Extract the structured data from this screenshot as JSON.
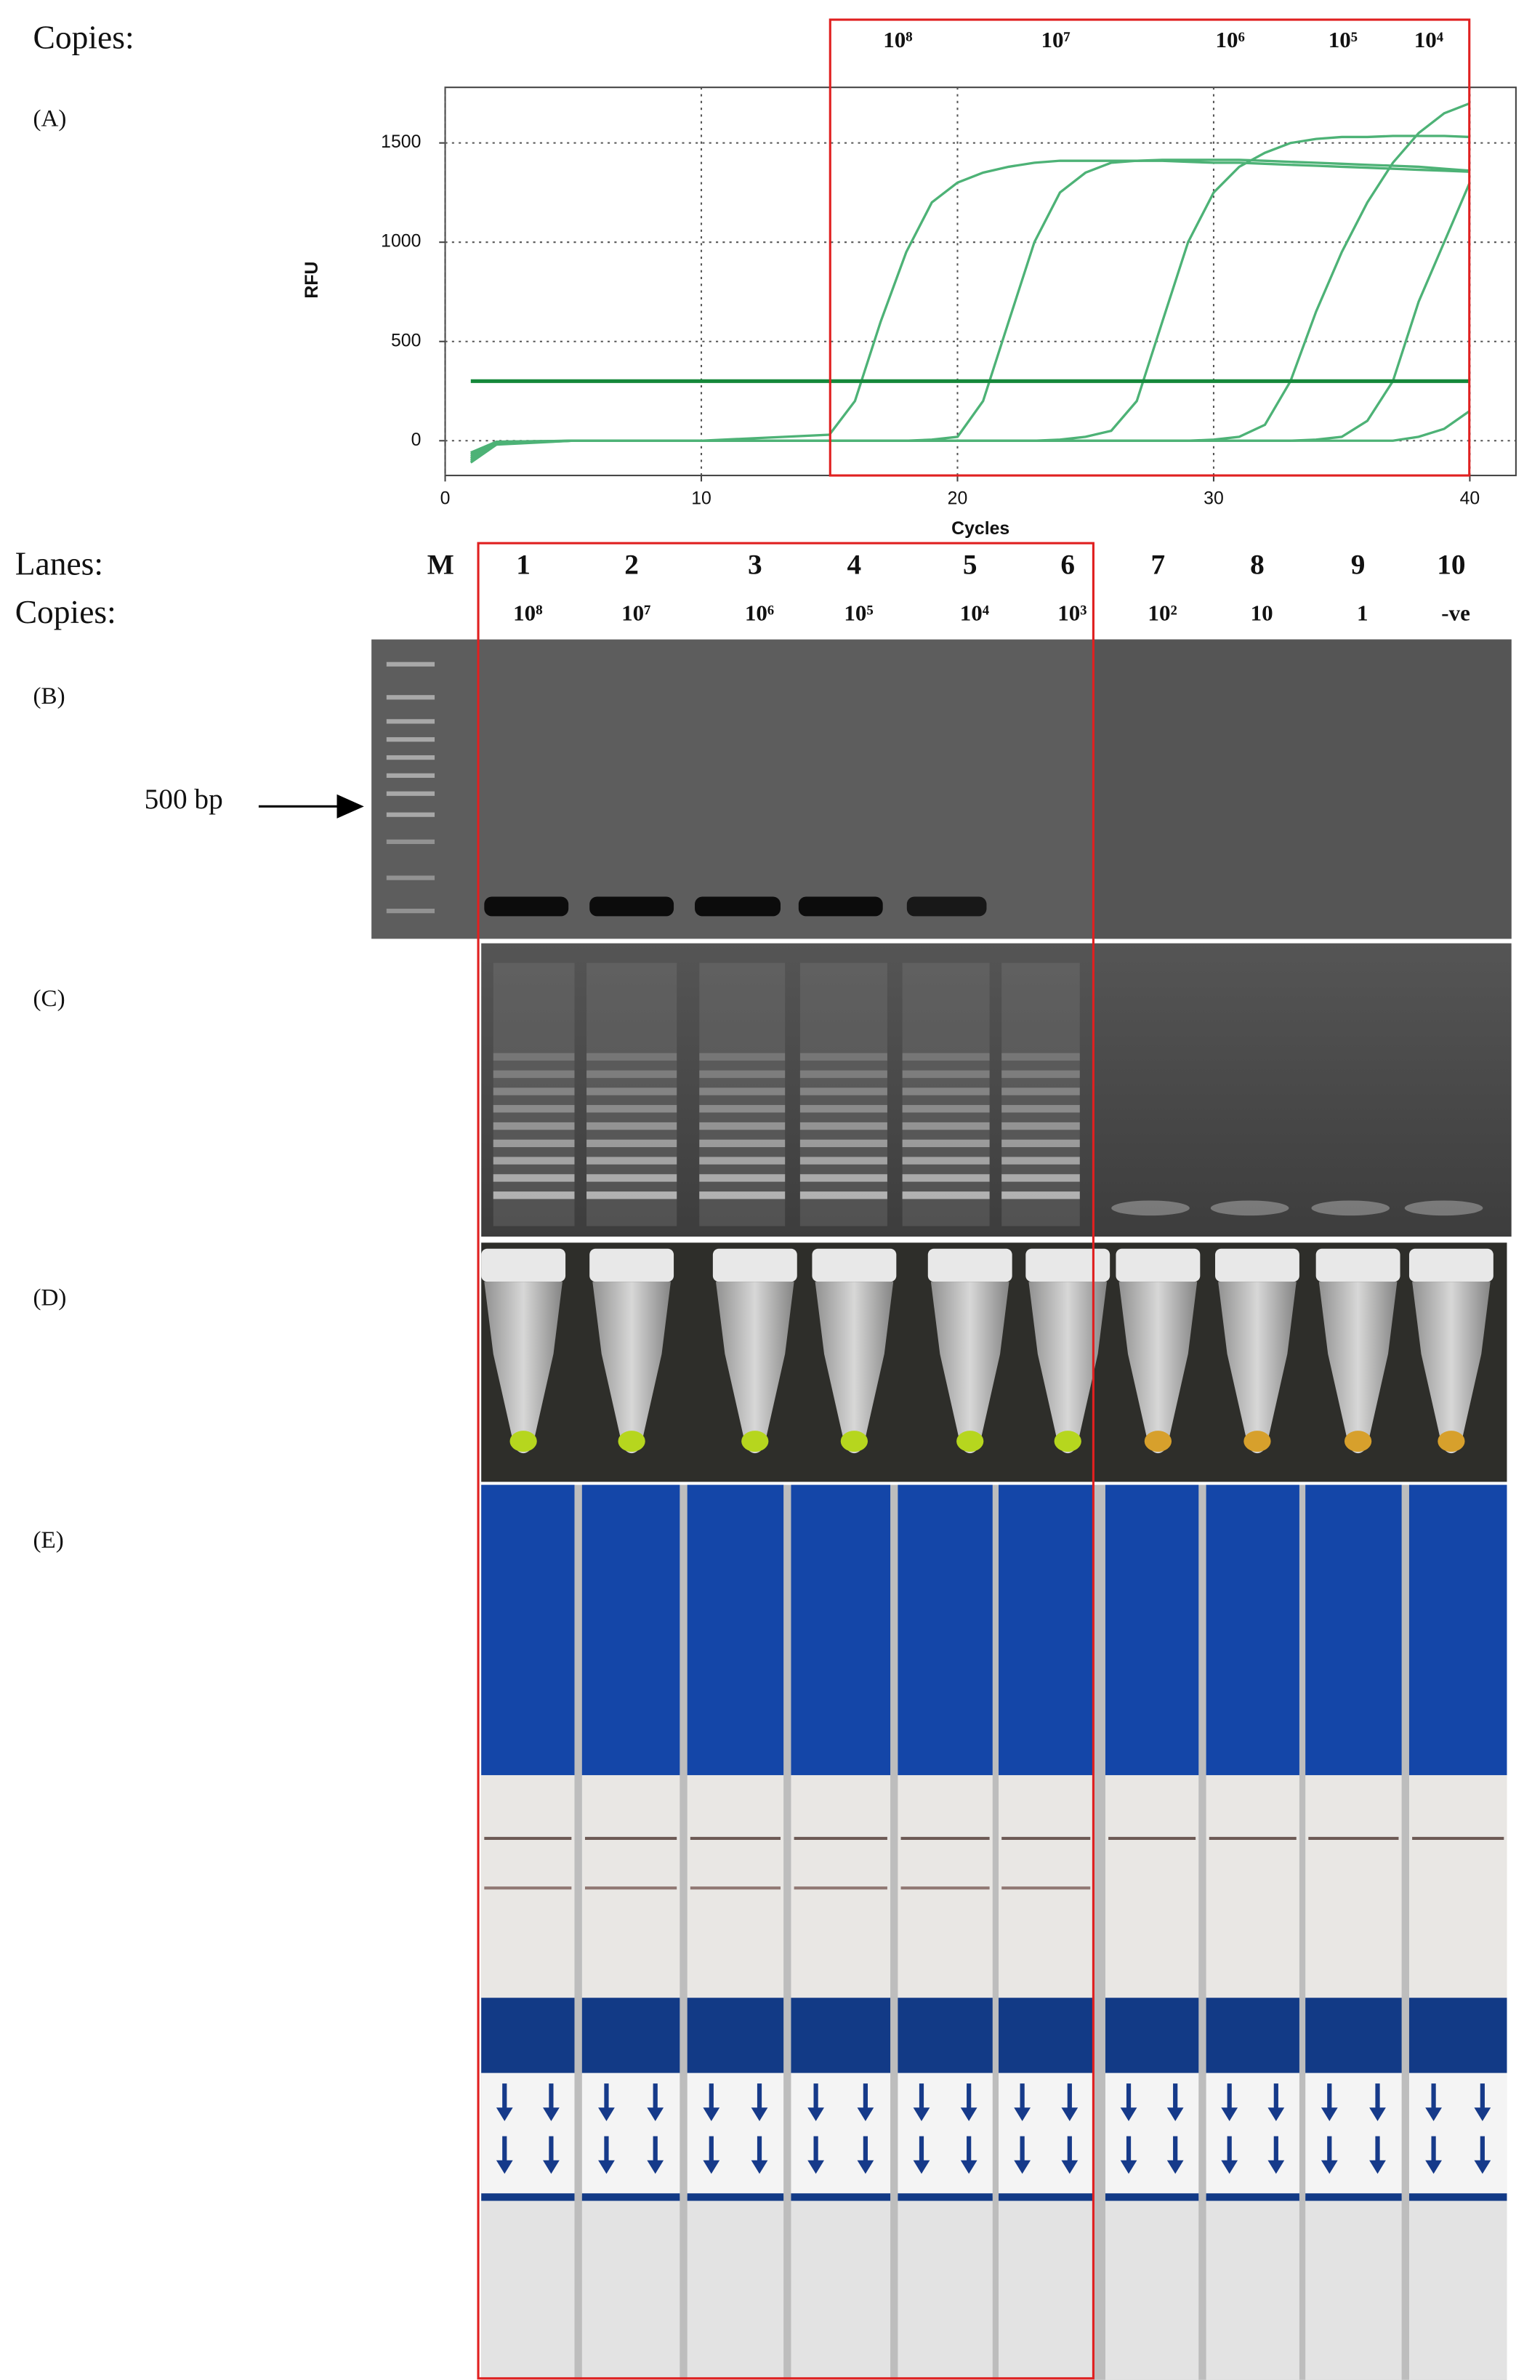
{
  "chart_data": {
    "type": "line",
    "panel_label": "(A)",
    "header_label": "Copies:",
    "xlabel": "Cycles",
    "ylabel": "RFU",
    "x": [
      1,
      2,
      5,
      10,
      15,
      16,
      17,
      18,
      19,
      20,
      21,
      22,
      23,
      24,
      25,
      26,
      27,
      28,
      29,
      30,
      31,
      32,
      33,
      34,
      35,
      36,
      37,
      38,
      39,
      40
    ],
    "xlim": [
      0,
      41.8
    ],
    "ylim": [
      -175,
      1780
    ],
    "xticks": [
      0,
      10,
      20,
      30,
      40
    ],
    "yticks": [
      0,
      500,
      1000,
      1500
    ],
    "grid": true,
    "threshold": 300,
    "threshold_color": "#15883a",
    "series": [
      {
        "name": "10⁸",
        "color": "#4db276",
        "values": [
          -110,
          -20,
          0,
          0,
          30,
          200,
          600,
          950,
          1200,
          1300,
          1350,
          1380,
          1400,
          1410,
          1410,
          1410,
          1410,
          1410,
          1405,
          1400,
          1400,
          1395,
          1390,
          1385,
          1380,
          1375,
          1370,
          1365,
          1360,
          1355
        ]
      },
      {
        "name": "10⁷",
        "color": "#4db276",
        "values": [
          -100,
          -15,
          0,
          0,
          0,
          0,
          0,
          0,
          5,
          20,
          200,
          600,
          1000,
          1250,
          1350,
          1400,
          1410,
          1415,
          1415,
          1415,
          1415,
          1410,
          1405,
          1400,
          1395,
          1390,
          1385,
          1380,
          1370,
          1360
        ]
      },
      {
        "name": "10⁶",
        "color": "#4db276",
        "values": [
          -90,
          -10,
          0,
          0,
          0,
          0,
          0,
          0,
          0,
          0,
          0,
          0,
          0,
          5,
          20,
          50,
          200,
          600,
          1000,
          1250,
          1380,
          1450,
          1500,
          1520,
          1530,
          1530,
          1535,
          1535,
          1535,
          1530
        ]
      },
      {
        "name": "10⁵",
        "color": "#4db276",
        "values": [
          -80,
          -10,
          0,
          0,
          0,
          0,
          0,
          0,
          0,
          0,
          0,
          0,
          0,
          0,
          0,
          0,
          0,
          0,
          0,
          5,
          20,
          80,
          300,
          650,
          950,
          1200,
          1400,
          1550,
          1650,
          1700
        ]
      },
      {
        "name": "10⁴",
        "color": "#4db276",
        "values": [
          -70,
          -5,
          0,
          0,
          0,
          0,
          0,
          0,
          0,
          0,
          0,
          0,
          0,
          0,
          0,
          0,
          0,
          0,
          0,
          0,
          0,
          0,
          0,
          5,
          20,
          100,
          300,
          700,
          1000,
          1300
        ]
      },
      {
        "name": null,
        "color": "#4db276",
        "values": [
          -60,
          -5,
          0,
          0,
          0,
          0,
          0,
          0,
          0,
          0,
          0,
          0,
          0,
          0,
          0,
          0,
          0,
          0,
          0,
          0,
          0,
          0,
          0,
          0,
          0,
          0,
          0,
          20,
          60,
          150
        ]
      }
    ]
  },
  "lanes": {
    "label": "Lanes:",
    "copies_label": "Copies:",
    "marker": "M",
    "numbers": [
      "1",
      "2",
      "3",
      "4",
      "5",
      "6",
      "7",
      "8",
      "9",
      "10"
    ],
    "copies": [
      "10⁸",
      "10⁷",
      "10⁶",
      "10⁵",
      "10⁴",
      "10³",
      "10²",
      "10",
      "1",
      "-ve"
    ]
  },
  "marker_label": "500 bp",
  "panels": [
    "(B)",
    "(C)",
    "(D)",
    "(E)"
  ]
}
